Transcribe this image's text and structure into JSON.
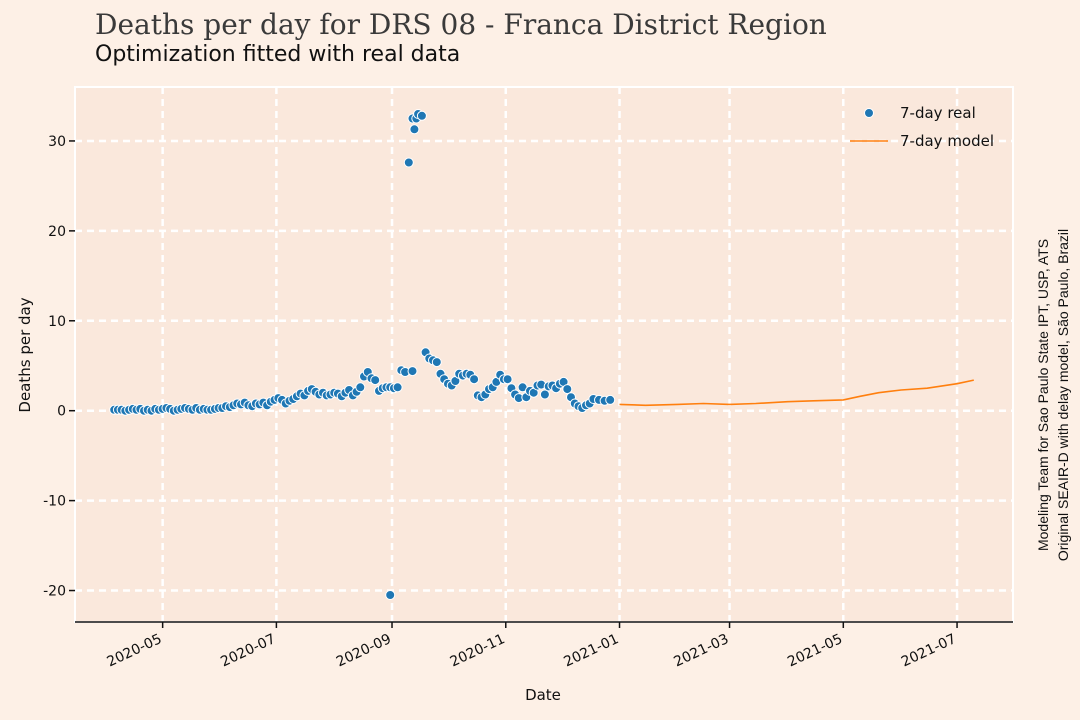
{
  "chart_data": {
    "type": "scatter",
    "title": "Deaths per day for DRS 08 - Franca District Region",
    "subtitle": "Optimization fitted with real data",
    "xlabel": "Date",
    "ylabel": "Deaths per day",
    "credits": [
      "Modeling Team for Sao Paulo State IPT, USP, ATS",
      "Original SEAIR-D with delay model, São Paulo, Brazil"
    ],
    "x_range": [
      "2020-03-15",
      "2021-07-31"
    ],
    "ylim": [
      -23.5,
      36
    ],
    "x_ticks": [
      {
        "date": "2020-05-01",
        "label": "2020-05"
      },
      {
        "date": "2020-07-01",
        "label": "2020-07"
      },
      {
        "date": "2020-09-01",
        "label": "2020-09"
      },
      {
        "date": "2020-11-01",
        "label": "2020-11"
      },
      {
        "date": "2021-01-01",
        "label": "2021-01"
      },
      {
        "date": "2021-03-01",
        "label": "2021-03"
      },
      {
        "date": "2021-05-01",
        "label": "2021-05"
      },
      {
        "date": "2021-07-01",
        "label": "2021-07"
      }
    ],
    "y_ticks": [
      {
        "value": 30,
        "label": "30"
      },
      {
        "value": 20,
        "label": "20"
      },
      {
        "value": 10,
        "label": "10"
      },
      {
        "value": 0,
        "label": "0"
      },
      {
        "value": -10,
        "label": "-10"
      },
      {
        "value": -20,
        "label": "-20"
      }
    ],
    "grid": true,
    "legend_position": "top-right",
    "legend": [
      {
        "label": "7-day real",
        "kind": "marker",
        "color": "#1f77b4"
      },
      {
        "label": "7-day model",
        "kind": "line",
        "color": "#ff7f0e"
      }
    ],
    "series": [
      {
        "name": "7-day real",
        "type": "scatter",
        "color": "#1f77b4",
        "points": [
          [
            "2020-04-05",
            0.1
          ],
          [
            "2020-04-07",
            0.1
          ],
          [
            "2020-04-09",
            0.1
          ],
          [
            "2020-04-11",
            0.0
          ],
          [
            "2020-04-13",
            0.1
          ],
          [
            "2020-04-15",
            0.2
          ],
          [
            "2020-04-17",
            0.1
          ],
          [
            "2020-04-19",
            0.2
          ],
          [
            "2020-04-21",
            0.0
          ],
          [
            "2020-04-23",
            0.1
          ],
          [
            "2020-04-25",
            0.0
          ],
          [
            "2020-04-27",
            0.2
          ],
          [
            "2020-04-29",
            0.1
          ],
          [
            "2020-05-01",
            0.2
          ],
          [
            "2020-05-03",
            0.3
          ],
          [
            "2020-05-05",
            0.2
          ],
          [
            "2020-05-07",
            0.0
          ],
          [
            "2020-05-09",
            0.1
          ],
          [
            "2020-05-11",
            0.2
          ],
          [
            "2020-05-13",
            0.3
          ],
          [
            "2020-05-15",
            0.2
          ],
          [
            "2020-05-17",
            0.1
          ],
          [
            "2020-05-19",
            0.3
          ],
          [
            "2020-05-21",
            0.1
          ],
          [
            "2020-05-23",
            0.2
          ],
          [
            "2020-05-25",
            0.1
          ],
          [
            "2020-05-27",
            0.1
          ],
          [
            "2020-05-29",
            0.2
          ],
          [
            "2020-05-31",
            0.3
          ],
          [
            "2020-06-02",
            0.3
          ],
          [
            "2020-06-04",
            0.5
          ],
          [
            "2020-06-06",
            0.4
          ],
          [
            "2020-06-08",
            0.6
          ],
          [
            "2020-06-10",
            0.8
          ],
          [
            "2020-06-12",
            0.7
          ],
          [
            "2020-06-14",
            0.9
          ],
          [
            "2020-06-16",
            0.6
          ],
          [
            "2020-06-18",
            0.5
          ],
          [
            "2020-06-20",
            0.8
          ],
          [
            "2020-06-22",
            0.7
          ],
          [
            "2020-06-24",
            0.9
          ],
          [
            "2020-06-26",
            0.6
          ],
          [
            "2020-06-28",
            1.0
          ],
          [
            "2020-06-30",
            1.2
          ],
          [
            "2020-07-02",
            1.4
          ],
          [
            "2020-07-04",
            1.2
          ],
          [
            "2020-07-06",
            0.8
          ],
          [
            "2020-07-08",
            1.1
          ],
          [
            "2020-07-10",
            1.3
          ],
          [
            "2020-07-12",
            1.6
          ],
          [
            "2020-07-14",
            1.9
          ],
          [
            "2020-07-16",
            1.7
          ],
          [
            "2020-07-18",
            2.2
          ],
          [
            "2020-07-20",
            2.4
          ],
          [
            "2020-07-22",
            2.1
          ],
          [
            "2020-07-24",
            1.8
          ],
          [
            "2020-07-26",
            2.0
          ],
          [
            "2020-07-28",
            1.7
          ],
          [
            "2020-07-30",
            1.8
          ],
          [
            "2020-08-01",
            2.0
          ],
          [
            "2020-08-03",
            1.9
          ],
          [
            "2020-08-05",
            1.6
          ],
          [
            "2020-08-07",
            2.0
          ],
          [
            "2020-08-09",
            2.3
          ],
          [
            "2020-08-11",
            1.7
          ],
          [
            "2020-08-13",
            2.1
          ],
          [
            "2020-08-15",
            2.6
          ],
          [
            "2020-08-17",
            3.8
          ],
          [
            "2020-08-19",
            4.3
          ],
          [
            "2020-08-21",
            3.6
          ],
          [
            "2020-08-23",
            3.4
          ],
          [
            "2020-08-25",
            2.2
          ],
          [
            "2020-08-27",
            2.5
          ],
          [
            "2020-08-29",
            2.6
          ],
          [
            "2020-08-31",
            2.6
          ],
          [
            "2020-09-02",
            2.5
          ],
          [
            "2020-09-04",
            2.6
          ],
          [
            "2020-08-31",
            -20.5
          ],
          [
            "2020-09-06",
            4.5
          ],
          [
            "2020-09-08",
            4.3
          ],
          [
            "2020-09-10",
            27.6
          ],
          [
            "2020-09-12",
            32.5
          ],
          [
            "2020-09-13",
            31.3
          ],
          [
            "2020-09-14",
            32.5
          ],
          [
            "2020-09-15",
            33.0
          ],
          [
            "2020-09-17",
            32.8
          ],
          [
            "2020-09-12",
            4.4
          ],
          [
            "2020-09-19",
            6.5
          ],
          [
            "2020-09-21",
            5.8
          ],
          [
            "2020-09-23",
            5.6
          ],
          [
            "2020-09-25",
            5.4
          ],
          [
            "2020-09-27",
            4.1
          ],
          [
            "2020-09-29",
            3.5
          ],
          [
            "2020-10-01",
            3.0
          ],
          [
            "2020-10-03",
            2.8
          ],
          [
            "2020-10-05",
            3.3
          ],
          [
            "2020-10-07",
            4.1
          ],
          [
            "2020-10-09",
            3.9
          ],
          [
            "2020-10-11",
            4.1
          ],
          [
            "2020-10-13",
            4.0
          ],
          [
            "2020-10-15",
            3.5
          ],
          [
            "2020-10-17",
            1.7
          ],
          [
            "2020-10-19",
            1.5
          ],
          [
            "2020-10-21",
            1.8
          ],
          [
            "2020-10-23",
            2.4
          ],
          [
            "2020-10-25",
            2.6
          ],
          [
            "2020-10-27",
            3.2
          ],
          [
            "2020-10-29",
            4.0
          ],
          [
            "2020-10-31",
            3.5
          ],
          [
            "2020-11-02",
            3.5
          ],
          [
            "2020-11-04",
            2.5
          ],
          [
            "2020-11-06",
            1.8
          ],
          [
            "2020-11-08",
            1.4
          ],
          [
            "2020-11-10",
            2.6
          ],
          [
            "2020-11-12",
            1.5
          ],
          [
            "2020-11-14",
            2.2
          ],
          [
            "2020-11-16",
            2.0
          ],
          [
            "2020-11-18",
            2.8
          ],
          [
            "2020-11-20",
            2.9
          ],
          [
            "2020-11-22",
            1.8
          ],
          [
            "2020-11-24",
            2.7
          ],
          [
            "2020-11-26",
            2.8
          ],
          [
            "2020-11-28",
            2.5
          ],
          [
            "2020-11-30",
            3.0
          ],
          [
            "2020-12-02",
            3.2
          ],
          [
            "2020-12-04",
            2.4
          ],
          [
            "2020-12-06",
            1.5
          ],
          [
            "2020-12-08",
            0.8
          ],
          [
            "2020-12-10",
            0.5
          ],
          [
            "2020-12-12",
            0.3
          ],
          [
            "2020-12-14",
            0.6
          ],
          [
            "2020-12-16",
            0.8
          ],
          [
            "2020-12-18",
            1.3
          ],
          [
            "2020-12-21",
            1.2
          ],
          [
            "2020-12-24",
            1.1
          ],
          [
            "2020-12-27",
            1.2
          ]
        ]
      },
      {
        "name": "7-day model",
        "type": "line",
        "color": "#ff7f0e",
        "points": [
          [
            "2021-01-01",
            0.7
          ],
          [
            "2021-01-15",
            0.6
          ],
          [
            "2021-02-01",
            0.7
          ],
          [
            "2021-02-15",
            0.8
          ],
          [
            "2021-03-01",
            0.7
          ],
          [
            "2021-03-15",
            0.8
          ],
          [
            "2021-04-01",
            1.0
          ],
          [
            "2021-04-15",
            1.1
          ],
          [
            "2021-05-01",
            1.2
          ],
          [
            "2021-05-10",
            1.6
          ],
          [
            "2021-05-20",
            2.0
          ],
          [
            "2021-06-01",
            2.3
          ],
          [
            "2021-06-15",
            2.5
          ],
          [
            "2021-07-01",
            3.0
          ],
          [
            "2021-07-10",
            3.4
          ]
        ]
      }
    ]
  }
}
